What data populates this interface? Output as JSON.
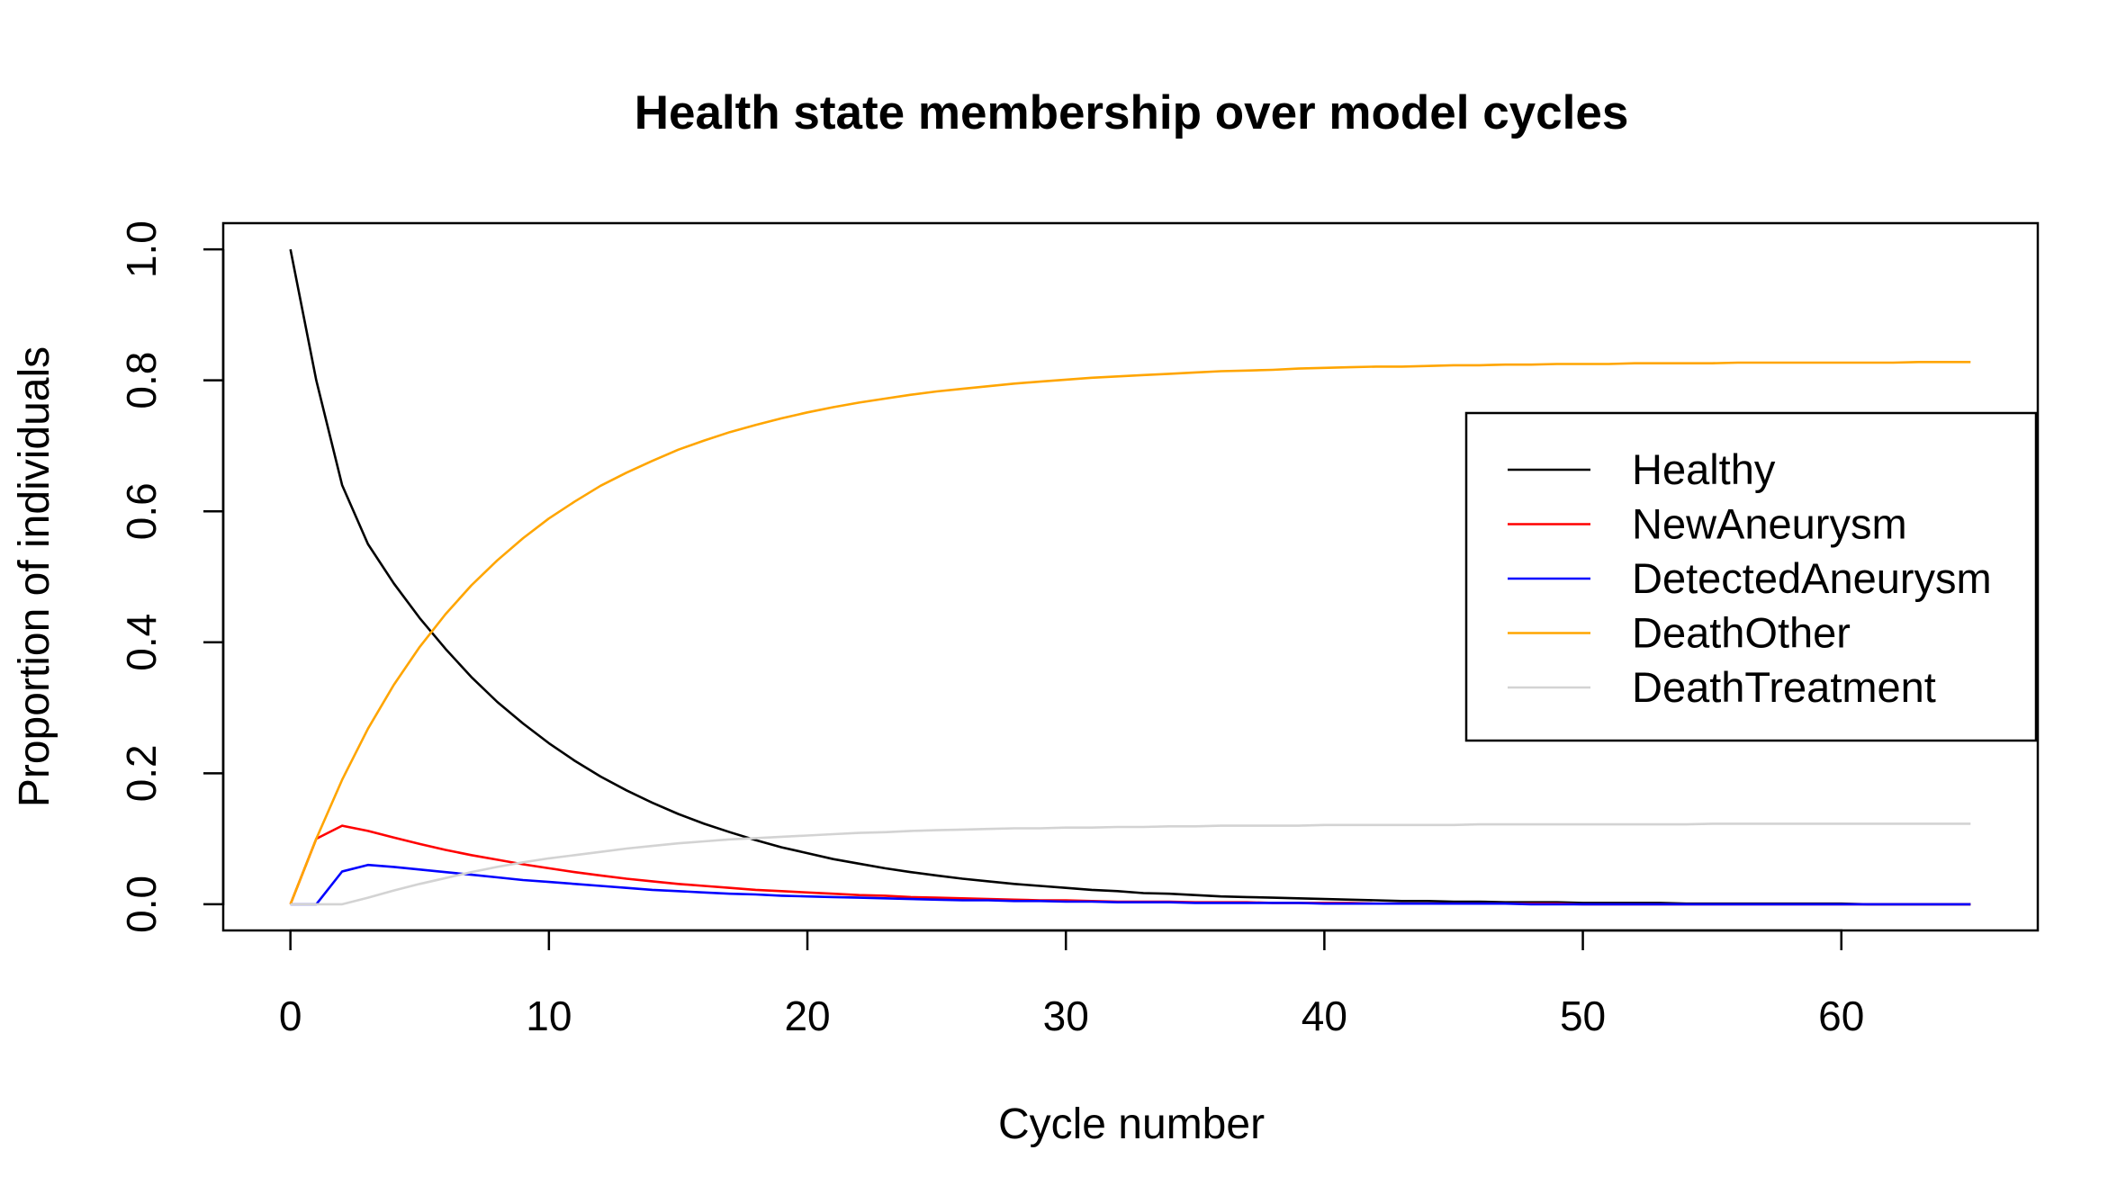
{
  "chart_data": {
    "type": "line",
    "title": "Health state membership over model cycles",
    "xlabel": "Cycle number",
    "ylabel": "Proportion of individuals",
    "xlim": [
      -2.6,
      67.6
    ],
    "ylim": [
      -0.04,
      1.04
    ],
    "x_ticks": [
      0,
      10,
      20,
      30,
      40,
      50,
      60
    ],
    "y_ticks": [
      0.0,
      0.2,
      0.4,
      0.6,
      0.8,
      1.0
    ],
    "x_tick_labels": [
      "0",
      "10",
      "20",
      "30",
      "40",
      "50",
      "60"
    ],
    "y_tick_labels": [
      "0.0",
      "0.2",
      "0.4",
      "0.6",
      "0.8",
      "1.0"
    ],
    "grid": false,
    "legend_position": "right",
    "x": [
      0,
      1,
      2,
      3,
      4,
      5,
      6,
      7,
      8,
      9,
      10,
      11,
      12,
      13,
      14,
      15,
      16,
      17,
      18,
      19,
      20,
      21,
      22,
      23,
      24,
      25,
      26,
      27,
      28,
      29,
      30,
      31,
      32,
      33,
      34,
      35,
      36,
      37,
      38,
      39,
      40,
      41,
      42,
      43,
      44,
      45,
      46,
      47,
      48,
      49,
      50,
      51,
      52,
      53,
      54,
      55,
      56,
      57,
      58,
      59,
      60,
      61,
      62,
      63,
      64,
      65
    ],
    "series": [
      {
        "name": "Healthy",
        "color": "#000000",
        "values": [
          1.0,
          0.8,
          0.64,
          0.55,
          0.49,
          0.437,
          0.39,
          0.347,
          0.309,
          0.276,
          0.246,
          0.219,
          0.195,
          0.174,
          0.155,
          0.138,
          0.123,
          0.11,
          0.098,
          0.087,
          0.078,
          0.069,
          0.062,
          0.055,
          0.049,
          0.044,
          0.039,
          0.035,
          0.031,
          0.028,
          0.025,
          0.022,
          0.02,
          0.017,
          0.016,
          0.014,
          0.012,
          0.011,
          0.01,
          0.009,
          0.008,
          0.007,
          0.006,
          0.005,
          0.005,
          0.004,
          0.004,
          0.003,
          0.003,
          0.003,
          0.002,
          0.002,
          0.002,
          0.002,
          0.001,
          0.001,
          0.001,
          0.001,
          0.001,
          0.001,
          0.001,
          0.0,
          0.0,
          0.0,
          0.0,
          0.0
        ]
      },
      {
        "name": "NewAneurysm",
        "color": "#ff0000",
        "values": [
          0.0,
          0.1,
          0.12,
          0.112,
          0.102,
          0.092,
          0.083,
          0.075,
          0.068,
          0.061,
          0.055,
          0.049,
          0.044,
          0.039,
          0.035,
          0.031,
          0.028,
          0.025,
          0.022,
          0.02,
          0.018,
          0.016,
          0.014,
          0.013,
          0.011,
          0.01,
          0.009,
          0.008,
          0.007,
          0.006,
          0.006,
          0.005,
          0.004,
          0.004,
          0.004,
          0.003,
          0.003,
          0.003,
          0.002,
          0.002,
          0.002,
          0.002,
          0.001,
          0.001,
          0.001,
          0.001,
          0.001,
          0.001,
          0.001,
          0.001,
          0.0,
          0.0,
          0.0,
          0.0,
          0.0,
          0.0,
          0.0,
          0.0,
          0.0,
          0.0,
          0.0,
          0.0,
          0.0,
          0.0,
          0.0,
          0.0
        ]
      },
      {
        "name": "DetectedAneurysm",
        "color": "#0000ff",
        "values": [
          0.0,
          0.0,
          0.05,
          0.06,
          0.057,
          0.053,
          0.049,
          0.045,
          0.041,
          0.037,
          0.034,
          0.031,
          0.028,
          0.025,
          0.022,
          0.02,
          0.018,
          0.016,
          0.015,
          0.013,
          0.012,
          0.011,
          0.01,
          0.009,
          0.008,
          0.007,
          0.006,
          0.006,
          0.005,
          0.005,
          0.004,
          0.004,
          0.003,
          0.003,
          0.003,
          0.002,
          0.002,
          0.002,
          0.002,
          0.002,
          0.001,
          0.001,
          0.001,
          0.001,
          0.001,
          0.001,
          0.001,
          0.001,
          0.0,
          0.0,
          0.0,
          0.0,
          0.0,
          0.0,
          0.0,
          0.0,
          0.0,
          0.0,
          0.0,
          0.0,
          0.0,
          0.0,
          0.0,
          0.0,
          0.0,
          0.0
        ]
      },
      {
        "name": "DeathOther",
        "color": "#ffa500",
        "values": [
          0.0,
          0.1,
          0.19,
          0.268,
          0.335,
          0.393,
          0.443,
          0.487,
          0.525,
          0.559,
          0.589,
          0.615,
          0.639,
          0.659,
          0.677,
          0.694,
          0.708,
          0.721,
          0.732,
          0.742,
          0.751,
          0.759,
          0.766,
          0.772,
          0.778,
          0.783,
          0.787,
          0.791,
          0.795,
          0.798,
          0.801,
          0.804,
          0.806,
          0.808,
          0.81,
          0.812,
          0.814,
          0.815,
          0.816,
          0.818,
          0.819,
          0.82,
          0.821,
          0.821,
          0.822,
          0.823,
          0.823,
          0.824,
          0.824,
          0.825,
          0.825,
          0.825,
          0.826,
          0.826,
          0.826,
          0.826,
          0.827,
          0.827,
          0.827,
          0.827,
          0.827,
          0.827,
          0.827,
          0.828,
          0.828,
          0.828
        ]
      },
      {
        "name": "DeathTreatment",
        "color": "#d3d3d3",
        "values": [
          0.0,
          0.0,
          0.0,
          0.01,
          0.021,
          0.031,
          0.04,
          0.049,
          0.057,
          0.064,
          0.07,
          0.075,
          0.08,
          0.085,
          0.089,
          0.093,
          0.096,
          0.099,
          0.101,
          0.103,
          0.105,
          0.107,
          0.109,
          0.11,
          0.112,
          0.113,
          0.114,
          0.115,
          0.116,
          0.116,
          0.117,
          0.117,
          0.118,
          0.118,
          0.119,
          0.119,
          0.12,
          0.12,
          0.12,
          0.12,
          0.121,
          0.121,
          0.121,
          0.121,
          0.121,
          0.121,
          0.122,
          0.122,
          0.122,
          0.122,
          0.122,
          0.122,
          0.122,
          0.122,
          0.122,
          0.123,
          0.123,
          0.123,
          0.123,
          0.123,
          0.123,
          0.123,
          0.123,
          0.123,
          0.123,
          0.123
        ]
      }
    ]
  }
}
